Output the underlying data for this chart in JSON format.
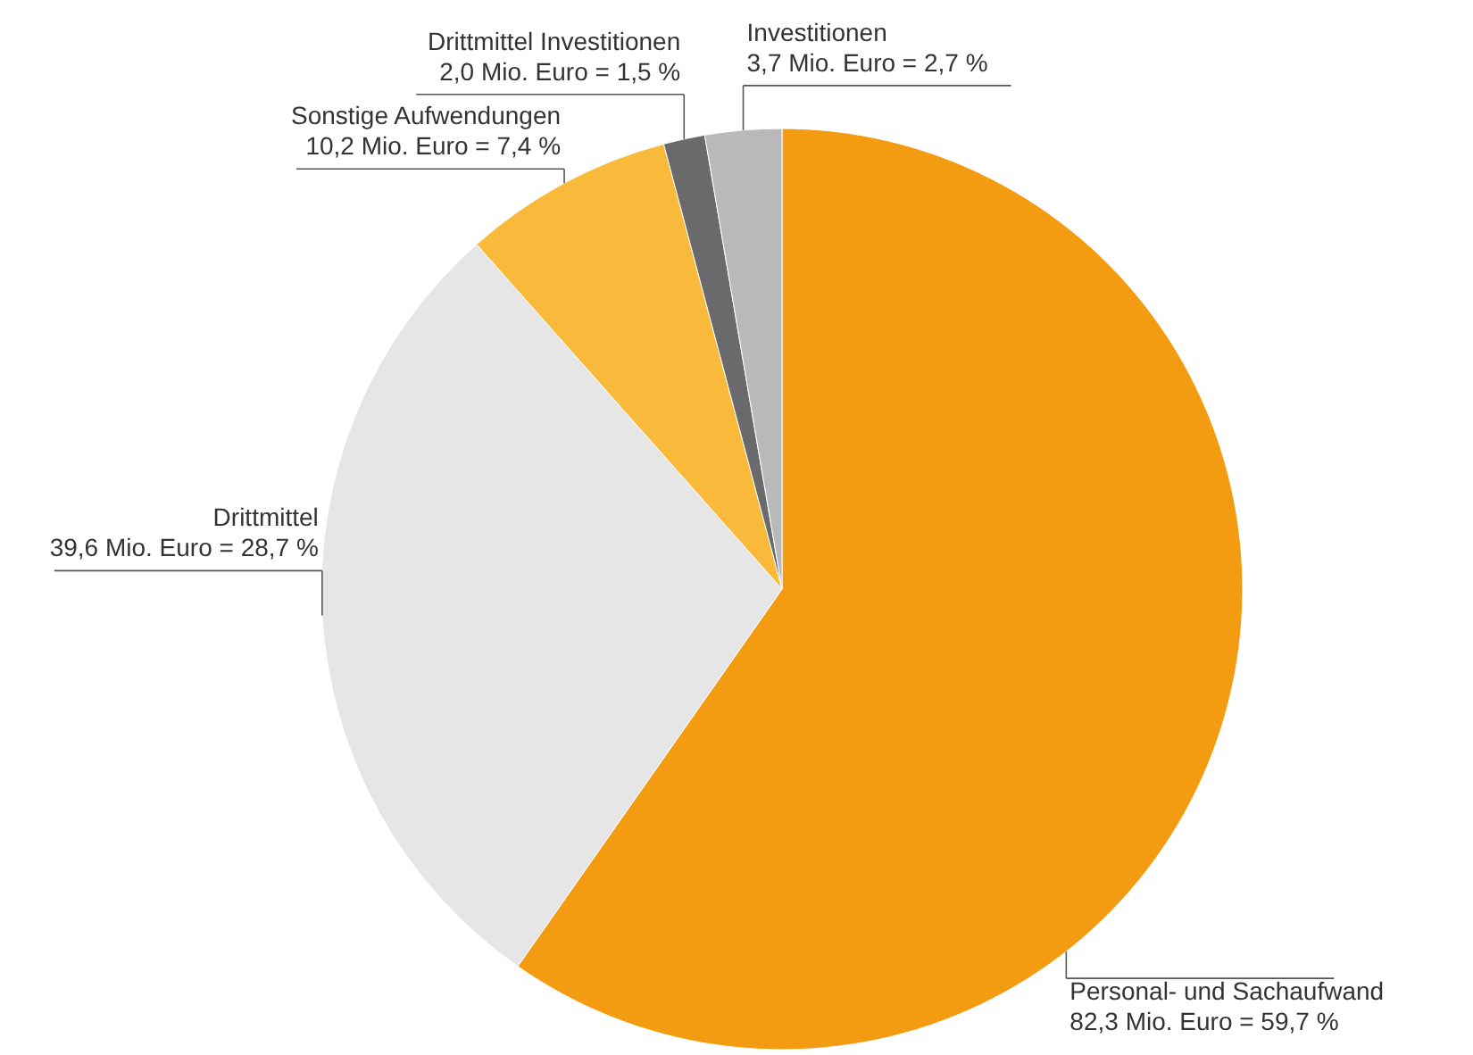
{
  "chart_data": {
    "type": "pie",
    "categories": [
      "Personal- und Sachaufwand",
      "Drittmittel",
      "Sonstige Aufwendungen",
      "Drittmittel Investitionen",
      "Investitionen"
    ],
    "values": [
      82.3,
      39.6,
      10.2,
      2.0,
      3.7
    ],
    "value_labels": [
      "82,3 Mio. Euro = 59,7 %",
      "39,6 Mio. Euro = 28,7 %",
      "10,2 Mio. Euro = 7,4 %",
      "2,0 Mio. Euro = 1,5 %",
      "3,7 Mio. Euro = 2,7 %"
    ],
    "colors": [
      "#f39c12",
      "#e6e6e7",
      "#f9b93a",
      "#6a6a6c",
      "#b9b9bb"
    ]
  }
}
